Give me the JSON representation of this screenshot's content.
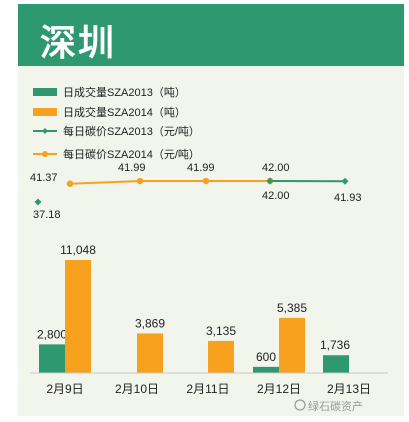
{
  "title": "深圳",
  "colors": {
    "bar2013": "#2e9870",
    "bar2014": "#f7a11e",
    "line2013": "#2e9870",
    "line2014": "#f7a11e",
    "header": "#2e9870",
    "panel": "#f1f5ec"
  },
  "watermark": "绿石碳资产",
  "chart_data": {
    "type": "bar",
    "categories": [
      "2月9日",
      "2月10日",
      "2月11日",
      "2月12日",
      "2月13日"
    ],
    "series": [
      {
        "name": "日成交量SZA2013（吨）",
        "kind": "bar",
        "values": [
          2800,
          null,
          null,
          600,
          1736
        ],
        "labels": [
          "2,800",
          "",
          "",
          "600",
          "1,736"
        ]
      },
      {
        "name": "日成交量SZA2014（吨）",
        "kind": "bar",
        "values": [
          11048,
          3869,
          3135,
          5385,
          null
        ],
        "labels": [
          "11,048",
          "3,869",
          "3,135",
          "5,385",
          ""
        ]
      },
      {
        "name": "每日碳价SZA2013（元/吨）",
        "kind": "line",
        "values": [
          37.18,
          null,
          null,
          42.0,
          41.93
        ],
        "labels": [
          "37.18",
          "",
          "",
          "42.00",
          "41.93"
        ]
      },
      {
        "name": "每日碳价SZA2014（元/吨）",
        "kind": "line",
        "values": [
          41.37,
          41.99,
          41.99,
          42.0,
          null
        ],
        "labels": [
          "41.37",
          "41.99",
          "41.99",
          "42.00",
          ""
        ]
      }
    ],
    "legend_position": "top-left"
  }
}
